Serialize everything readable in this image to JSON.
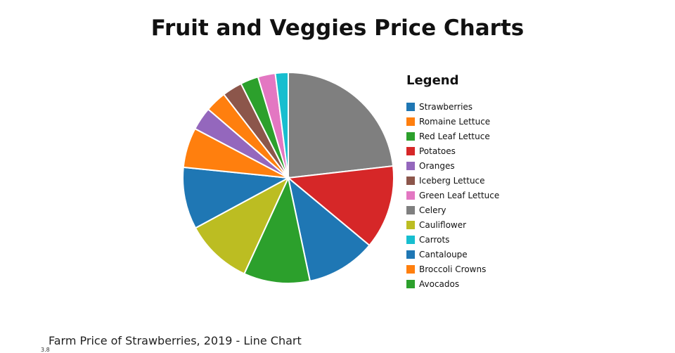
{
  "chart_data": {
    "type": "pie",
    "title": "Fruit and Veggies Price Charts",
    "legend_title": "Legend",
    "legend_position": "right",
    "slices": [
      {
        "label": "Celery",
        "value": 23.5,
        "color": "#7f7f7f"
      },
      {
        "label": "Potatoes",
        "value": 13.0,
        "color": "#d62728"
      },
      {
        "label": "Strawberries",
        "value": 10.8,
        "color": "#1f77b4"
      },
      {
        "label": "Avocados",
        "value": 10.3,
        "color": "#2ca02c"
      },
      {
        "label": "Cauliflower",
        "value": 10.4,
        "color": "#bcbd22"
      },
      {
        "label": "Cantaloupe",
        "value": 9.6,
        "color": "#1f77b4"
      },
      {
        "label": "Broccoli Crowns",
        "value": 6.2,
        "color": "#ff7f0e"
      },
      {
        "label": "Oranges",
        "value": 3.6,
        "color": "#9467bd"
      },
      {
        "label": "Romaine Lettuce",
        "value": 3.3,
        "color": "#ff7f0e"
      },
      {
        "label": "Iceberg Lettuce",
        "value": 3.1,
        "color": "#8c564b"
      },
      {
        "label": "Red Leaf Lettuce",
        "value": 2.8,
        "color": "#2ca02c"
      },
      {
        "label": "Green Leaf Lettuce",
        "value": 2.7,
        "color": "#e377c2"
      },
      {
        "label": "Carrots",
        "value": 2.0,
        "color": "#17becf"
      }
    ],
    "legend_order": [
      "Strawberries",
      "Romaine Lettuce",
      "Red Leaf Lettuce",
      "Potatoes",
      "Oranges",
      "Iceberg Lettuce",
      "Green Leaf Lettuce",
      "Celery",
      "Cauliflower",
      "Carrots",
      "Cantaloupe",
      "Broccoli Crowns",
      "Avocados"
    ]
  },
  "next_chart": {
    "title": "Farm Price of Strawberries, 2019 - Line Chart",
    "first_tick": "3.8"
  }
}
